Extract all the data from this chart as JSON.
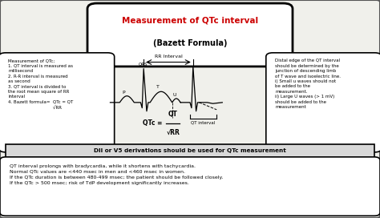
{
  "bg_color": "#f0f0eb",
  "border_color": "#444444",
  "title_line1": "Measurement of QTc interval",
  "title_line2": "(Bazett Formula)",
  "title_color": "#cc0000",
  "title2_color": "#000000",
  "rr_label": "RR Interval",
  "qt_label": "QT interval",
  "qrs_label": "QRS",
  "p_label": "P",
  "t_label": "T",
  "u_label": "U",
  "bottom_banner_text": "DII or V5 derivations should be used for QTc measurement",
  "bottom_box_text": "QT interval prolongs with bradycardia, while it shortens with tachycardia.\nNormal QTc values are <440 msec in men and <460 msec in women.\nIf the QTc duration is between 480-499 msec; the patient should be followed closely.\nIf the QTc > 500 msec; risk of TdP development significantly increases.",
  "left_title": "Measurement of QTc;",
  "left_lines": [
    "1. QT interval is measured as",
    "millisecond",
    "2. R-R interval is measured",
    "as second",
    "3. QT interval is divided to",
    "the root mean square of RR",
    "interval",
    "4. Bazett formula=  QTc = QT",
    "                                √RR"
  ],
  "right_lines": [
    "Distal edge of the QT interval",
    "should be determined by the",
    "junction of descending limb",
    "of T wave and isoelectric line.",
    "i) Small u waves should not",
    "be added to the",
    "measurement.",
    "ii) Large U waves (> 1 mV)",
    "should be added to the",
    "measurement"
  ]
}
